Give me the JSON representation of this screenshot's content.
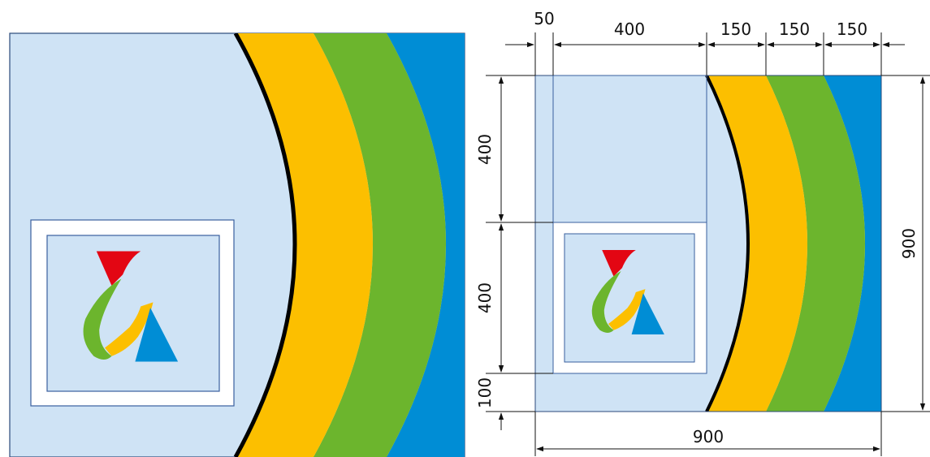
{
  "colors": {
    "background": "#cfe3f5",
    "yellow": "#fcbf00",
    "green": "#6cb52d",
    "blue": "#008dd5",
    "frame": "#ffffff",
    "frame_line": "#3a5f9e",
    "logo_red": "#e30613",
    "curve": "#000000"
  },
  "icons": {
    "logo": "stylized-letters-logo-icon",
    "arrow": "dimension-arrow-icon"
  },
  "dimensions": {
    "top": [
      "50",
      "400",
      "150",
      "150",
      "150"
    ],
    "left": [
      "400",
      "400",
      "100"
    ],
    "right": "900",
    "bottom": "900"
  }
}
